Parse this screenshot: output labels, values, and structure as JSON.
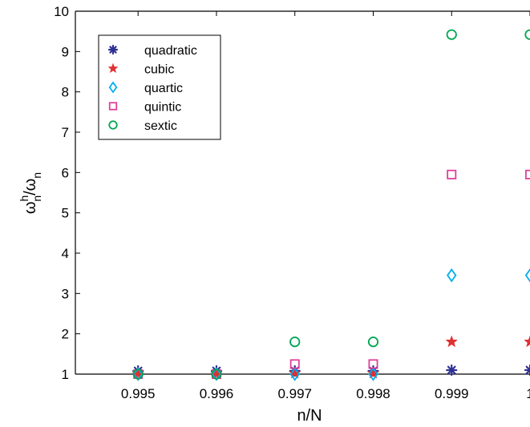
{
  "chart_data": {
    "type": "scatter",
    "xlabel": "n/N",
    "ylabel": {
      "base": "ω",
      "sup": "h",
      "sub": "n",
      "slash": "/",
      "base2": "ω",
      "sub2": "n"
    },
    "xlim": [
      0.9942,
      1.0
    ],
    "ylim": [
      1,
      10
    ],
    "x_ticks": [
      0.995,
      0.996,
      0.997,
      0.998,
      0.999,
      1.0
    ],
    "x_tick_labels": [
      "0.995",
      "0.996",
      "0.997",
      "0.998",
      "0.999",
      "1"
    ],
    "y_ticks": [
      1,
      2,
      3,
      4,
      5,
      6,
      7,
      8,
      9,
      10
    ],
    "y_tick_labels": [
      "1",
      "2",
      "3",
      "4",
      "5",
      "6",
      "7",
      "8",
      "9",
      "10"
    ],
    "grid": false,
    "legend_position": "top-left",
    "x": [
      0.995,
      0.996,
      0.997,
      0.998,
      0.999,
      1.0
    ],
    "series": [
      {
        "name": "quadratic",
        "marker": "asterisk",
        "color": "#2e3192",
        "values": [
          1.08,
          1.08,
          1.08,
          1.08,
          1.1,
          1.1
        ]
      },
      {
        "name": "cubic",
        "marker": "star",
        "color": "#e03030",
        "values": [
          1.0,
          1.0,
          1.02,
          1.02,
          1.8,
          1.8
        ]
      },
      {
        "name": "quartic",
        "marker": "diamond",
        "color": "#00aeef",
        "values": [
          1.0,
          1.0,
          1.0,
          1.0,
          3.45,
          3.45
        ]
      },
      {
        "name": "quintic",
        "marker": "square",
        "color": "#e0409a",
        "values": [
          1.0,
          1.0,
          1.25,
          1.25,
          5.95,
          5.95
        ]
      },
      {
        "name": "sextic",
        "marker": "circle",
        "color": "#00a651",
        "values": [
          1.0,
          1.0,
          1.8,
          1.8,
          9.42,
          9.42
        ]
      }
    ]
  }
}
